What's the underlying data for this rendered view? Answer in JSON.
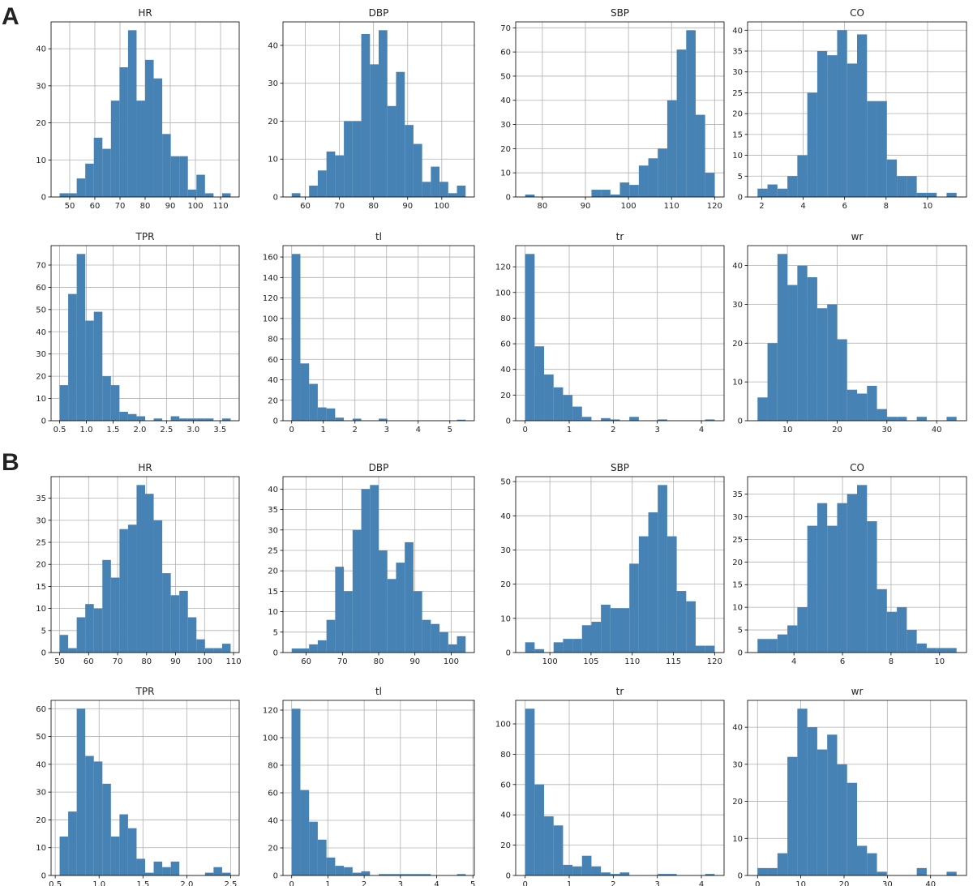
{
  "panel_labels": [
    "A",
    "B"
  ],
  "chart_data": [
    {
      "type": "histogram",
      "title": "HR",
      "color": "#4682b4",
      "grid": true,
      "bins": [
        46,
        49.4,
        52.8,
        56.2,
        59.6,
        63,
        66.4,
        69.8,
        73.2,
        76.6,
        80,
        83.4,
        86.8,
        90.2,
        93.6,
        97,
        100.4,
        103.8,
        107.2,
        110.6,
        114
      ],
      "values": [
        1,
        1,
        5,
        9,
        16,
        13,
        26,
        35,
        45,
        26,
        37,
        32,
        17,
        11,
        11,
        2,
        6,
        1,
        0,
        1
      ],
      "xlim": [
        42.6,
        117.4
      ],
      "ylim": [
        0,
        47.25
      ],
      "xticks": [
        50,
        60,
        70,
        80,
        90,
        100,
        110
      ],
      "yticks": [
        0,
        10,
        20,
        30,
        40
      ]
    },
    {
      "type": "histogram",
      "title": "DBP",
      "color": "#4682b4",
      "grid": true,
      "bins": [
        56,
        58.55,
        61.1,
        63.65,
        66.2,
        68.75,
        71.3,
        73.85,
        76.4,
        78.95,
        81.5,
        84.05,
        86.6,
        89.15,
        91.7,
        94.25,
        96.8,
        99.35,
        101.9,
        104.45,
        107
      ],
      "values": [
        1,
        0,
        3,
        7,
        12,
        11,
        20,
        20,
        43,
        35,
        44,
        24,
        33,
        19,
        14,
        4,
        8,
        4,
        1,
        3
      ],
      "xlim": [
        53.45,
        109.55
      ],
      "ylim": [
        0,
        46.2
      ],
      "xticks": [
        60,
        70,
        80,
        90,
        100
      ],
      "yticks": [
        0,
        10,
        20,
        30,
        40
      ]
    },
    {
      "type": "histogram",
      "title": "SBP",
      "color": "#4682b4",
      "grid": true,
      "bins": [
        76,
        78.2,
        80.4,
        82.6,
        84.8,
        87,
        89.2,
        91.4,
        93.6,
        95.8,
        98,
        100.2,
        102.4,
        104.6,
        106.8,
        109,
        111.2,
        113.4,
        115.6,
        117.8,
        120
      ],
      "values": [
        1,
        0,
        0,
        0,
        0,
        0,
        0,
        3,
        3,
        1,
        6,
        5,
        13,
        16,
        20,
        40,
        61,
        69,
        34,
        10
      ],
      "xlim": [
        73.8,
        122.2
      ],
      "ylim": [
        0,
        72.45
      ],
      "xticks": [
        80,
        90,
        100,
        110,
        120
      ],
      "yticks": [
        0,
        10,
        20,
        30,
        40,
        50,
        60,
        70
      ]
    },
    {
      "type": "histogram",
      "title": "CO",
      "color": "#4682b4",
      "grid": true,
      "bins": [
        1.8,
        2.28,
        2.76,
        3.24,
        3.72,
        4.2,
        4.68,
        5.16,
        5.64,
        6.12,
        6.6,
        7.08,
        7.56,
        8.04,
        8.52,
        9,
        9.48,
        9.96,
        10.44,
        10.92,
        11.4
      ],
      "values": [
        2,
        3,
        2,
        5,
        10,
        25,
        35,
        34,
        40,
        32,
        39,
        23,
        23,
        9,
        5,
        5,
        1,
        1,
        0,
        1
      ],
      "xlim": [
        1.32,
        11.88
      ],
      "ylim": [
        0,
        42
      ],
      "xticks": [
        2,
        4,
        6,
        8,
        10
      ],
      "yticks": [
        0,
        5,
        10,
        15,
        20,
        25,
        30,
        35,
        40
      ]
    },
    {
      "type": "histogram",
      "title": "TPR",
      "color": "#4682b4",
      "grid": true,
      "bins": [
        0.5,
        0.66,
        0.82,
        0.98,
        1.14,
        1.3,
        1.46,
        1.62,
        1.78,
        1.94,
        2.1,
        2.26,
        2.42,
        2.58,
        2.74,
        2.9,
        3.06,
        3.22,
        3.38,
        3.54,
        3.7
      ],
      "values": [
        16,
        57,
        75,
        45,
        49,
        20,
        16,
        4,
        3,
        2,
        0,
        1,
        0,
        2,
        1,
        1,
        1,
        1,
        0,
        1
      ],
      "xlim": [
        0.34,
        3.86
      ],
      "ylim": [
        0,
        78.75
      ],
      "xticks": [
        0.5,
        {
          "value": 1,
          "label": "1.0"
        },
        1.5,
        {
          "value": 2,
          "label": "2.0"
        },
        2.5,
        {
          "value": 3,
          "label": "3.0"
        },
        3.5
      ],
      "yticks": [
        0,
        10,
        20,
        30,
        40,
        50,
        60,
        70
      ]
    },
    {
      "type": "histogram",
      "title": "tl",
      "color": "#4682b4",
      "grid": true,
      "bins": [
        0,
        0.275,
        0.55,
        0.825,
        1.1,
        1.375,
        1.65,
        1.925,
        2.2,
        2.475,
        2.75,
        3.025,
        3.3,
        3.575,
        3.85,
        4.125,
        4.4,
        4.675,
        4.95,
        5.225,
        5.5
      ],
      "values": [
        163,
        56,
        36,
        13,
        12,
        3,
        0,
        2,
        0,
        0,
        2,
        0,
        0,
        0,
        0,
        0,
        0,
        0,
        0,
        1
      ],
      "xlim": [
        -0.275,
        5.775
      ],
      "ylim": [
        0,
        171.15
      ],
      "xticks": [
        0,
        1,
        2,
        3,
        4,
        5
      ],
      "yticks": [
        0,
        20,
        40,
        60,
        80,
        100,
        120,
        140,
        160
      ]
    },
    {
      "type": "histogram",
      "title": "tr",
      "color": "#4682b4",
      "grid": true,
      "bins": [
        0,
        0.215,
        0.43,
        0.645,
        0.86,
        1.075,
        1.29,
        1.505,
        1.72,
        1.935,
        2.15,
        2.365,
        2.58,
        2.795,
        3.01,
        3.225,
        3.44,
        3.655,
        3.87,
        4.085,
        4.3
      ],
      "values": [
        130,
        58,
        36,
        26,
        20,
        11,
        3,
        0,
        2,
        1,
        0,
        3,
        0,
        0,
        1,
        0,
        0,
        0,
        0,
        1
      ],
      "xlim": [
        -0.215,
        4.515
      ],
      "ylim": [
        0,
        136.5
      ],
      "xticks": [
        0,
        1,
        2,
        3,
        4
      ],
      "yticks": [
        0,
        20,
        40,
        60,
        80,
        100,
        120
      ]
    },
    {
      "type": "histogram",
      "title": "wr",
      "color": "#4682b4",
      "grid": true,
      "bins": [
        4,
        6,
        8,
        10,
        12,
        14,
        16,
        18,
        20,
        22,
        24,
        26,
        28,
        30,
        32,
        34,
        36,
        38,
        40,
        42,
        44
      ],
      "values": [
        6,
        20,
        43,
        35,
        40,
        37,
        29,
        30,
        21,
        8,
        7,
        9,
        3,
        1,
        1,
        0,
        1,
        0,
        0,
        1
      ],
      "xlim": [
        2,
        46
      ],
      "ylim": [
        0,
        45.15
      ],
      "xticks": [
        10,
        20,
        30,
        40
      ],
      "yticks": [
        0,
        10,
        20,
        30,
        40
      ]
    },
    {
      "type": "histogram",
      "title": "HR",
      "color": "#4682b4",
      "grid": true,
      "bins": [
        50,
        52.95,
        55.9,
        58.85,
        61.8,
        64.75,
        67.7,
        70.65,
        73.6,
        76.55,
        79.5,
        82.45,
        85.4,
        88.35,
        91.3,
        94.25,
        97.2,
        100.15,
        103.1,
        106.05,
        109
      ],
      "values": [
        4,
        1,
        8,
        11,
        10,
        21,
        17,
        28,
        29,
        38,
        36,
        30,
        18,
        13,
        14,
        8,
        3,
        1,
        1,
        2
      ],
      "xlim": [
        47.05,
        111.95
      ],
      "ylim": [
        0,
        39.9
      ],
      "xticks": [
        50,
        60,
        70,
        80,
        90,
        100,
        110
      ],
      "yticks": [
        0,
        5,
        10,
        15,
        20,
        25,
        30,
        35
      ]
    },
    {
      "type": "histogram",
      "title": "DBP",
      "color": "#4682b4",
      "grid": true,
      "bins": [
        56,
        58.4,
        60.8,
        63.2,
        65.6,
        68,
        70.4,
        72.8,
        75.2,
        77.6,
        80,
        82.4,
        84.8,
        87.2,
        89.6,
        92,
        94.4,
        96.8,
        99.2,
        101.6,
        104
      ],
      "values": [
        1,
        1,
        2,
        3,
        8,
        21,
        15,
        30,
        40,
        41,
        25,
        18,
        22,
        27,
        15,
        8,
        7,
        5,
        2,
        4
      ],
      "xlim": [
        53.6,
        106.4
      ],
      "ylim": [
        0,
        43.05
      ],
      "xticks": [
        60,
        70,
        80,
        90,
        100
      ],
      "yticks": [
        0,
        5,
        10,
        15,
        20,
        25,
        30,
        35,
        40
      ]
    },
    {
      "type": "histogram",
      "title": "SBP",
      "color": "#4682b4",
      "grid": true,
      "bins": [
        97,
        98.15,
        99.3,
        100.45,
        101.6,
        102.75,
        103.9,
        105.05,
        106.2,
        107.35,
        108.5,
        109.65,
        110.8,
        111.95,
        113.1,
        114.25,
        115.4,
        116.55,
        117.7,
        118.85,
        120
      ],
      "values": [
        3,
        1,
        0,
        3,
        4,
        4,
        8,
        9,
        14,
        13,
        13,
        26,
        34,
        41,
        49,
        34,
        18,
        15,
        2,
        2
      ],
      "xlim": [
        95.85,
        121.15
      ],
      "ylim": [
        0,
        51.45
      ],
      "xticks": [
        100,
        105,
        110,
        115,
        120
      ],
      "yticks": [
        0,
        10,
        20,
        30,
        40,
        50
      ]
    },
    {
      "type": "histogram",
      "title": "CO",
      "color": "#4682b4",
      "grid": true,
      "bins": [
        2.5,
        2.91,
        3.32,
        3.73,
        4.14,
        4.55,
        4.96,
        5.37,
        5.78,
        6.19,
        6.6,
        7.01,
        7.42,
        7.83,
        8.24,
        8.65,
        9.06,
        9.47,
        9.88,
        10.29,
        10.7
      ],
      "values": [
        3,
        3,
        4,
        6,
        10,
        28,
        33,
        28,
        33,
        35,
        37,
        29,
        14,
        9,
        10,
        5,
        2,
        1,
        1,
        1
      ],
      "xlim": [
        2.09,
        11.11
      ],
      "ylim": [
        0,
        38.85
      ],
      "xticks": [
        4,
        6,
        8,
        10
      ],
      "yticks": [
        0,
        5,
        10,
        15,
        20,
        25,
        30,
        35
      ]
    },
    {
      "type": "histogram",
      "title": "TPR",
      "color": "#4682b4",
      "grid": true,
      "bins": [
        0.55,
        0.6475,
        0.745,
        0.8425,
        0.94,
        1.0375,
        1.135,
        1.2325,
        1.33,
        1.4275,
        1.525,
        1.6225,
        1.72,
        1.8175,
        1.915,
        2.0125,
        2.11,
        2.2075,
        2.305,
        2.4025,
        2.5
      ],
      "values": [
        14,
        23,
        60,
        43,
        41,
        33,
        14,
        22,
        17,
        6,
        1,
        5,
        3,
        5,
        0,
        0,
        0,
        1,
        3,
        1
      ],
      "xlim": [
        0.4525,
        2.5975
      ],
      "ylim": [
        0,
        63
      ],
      "xticks": [
        0.5,
        {
          "value": 1,
          "label": "1.0"
        },
        1.5,
        {
          "value": 2,
          "label": "2.0"
        },
        2.5
      ],
      "yticks": [
        0,
        10,
        20,
        30,
        40,
        50,
        60
      ]
    },
    {
      "type": "histogram",
      "title": "tl",
      "color": "#4682b4",
      "grid": true,
      "bins": [
        0,
        0.24,
        0.48,
        0.72,
        0.96,
        1.2,
        1.44,
        1.68,
        1.92,
        2.16,
        2.4,
        2.64,
        2.88,
        3.12,
        3.36,
        3.6,
        3.84,
        4.08,
        4.32,
        4.56,
        4.8
      ],
      "values": [
        121,
        62,
        39,
        26,
        13,
        7,
        6,
        2,
        3,
        0,
        1,
        1,
        1,
        1,
        1,
        1,
        0,
        0,
        0,
        1
      ],
      "xlim": [
        -0.24,
        5.04
      ],
      "ylim": [
        0,
        127.05
      ],
      "xticks": [
        0,
        1,
        2,
        3,
        4,
        5
      ],
      "yticks": [
        0,
        20,
        40,
        60,
        80,
        100,
        120
      ]
    },
    {
      "type": "histogram",
      "title": "tr",
      "color": "#4682b4",
      "grid": true,
      "bins": [
        0,
        0.215,
        0.43,
        0.645,
        0.86,
        1.075,
        1.29,
        1.505,
        1.72,
        1.935,
        2.15,
        2.365,
        2.58,
        2.795,
        3.01,
        3.225,
        3.44,
        3.655,
        3.87,
        4.085,
        4.3
      ],
      "values": [
        110,
        60,
        39,
        33,
        7,
        6,
        13,
        6,
        2,
        1,
        2,
        0,
        0,
        0,
        1,
        1,
        0,
        0,
        0,
        1
      ],
      "xlim": [
        -0.215,
        4.515
      ],
      "ylim": [
        0,
        115.5
      ],
      "xticks": [
        0,
        1,
        2,
        3,
        4
      ],
      "yticks": [
        0,
        20,
        40,
        60,
        80,
        100
      ]
    },
    {
      "type": "histogram",
      "title": "wr",
      "color": "#4682b4",
      "grid": true,
      "bins": [
        0,
        2.3,
        4.6,
        6.9,
        9.2,
        11.5,
        13.8,
        16.1,
        18.4,
        20.7,
        23,
        25.3,
        27.6,
        29.9,
        32.2,
        34.5,
        36.8,
        39.1,
        41.4,
        43.7,
        46
      ],
      "values": [
        2,
        2,
        6,
        32,
        45,
        40,
        34,
        38,
        30,
        25,
        8,
        6,
        1,
        0,
        0,
        0,
        2,
        0,
        0,
        1
      ],
      "xlim": [
        -2.3,
        48.3
      ],
      "ylim": [
        0,
        47.25
      ],
      "xticks": [
        0,
        10,
        20,
        30,
        40
      ],
      "yticks": [
        0,
        10,
        20,
        30,
        40
      ]
    }
  ]
}
